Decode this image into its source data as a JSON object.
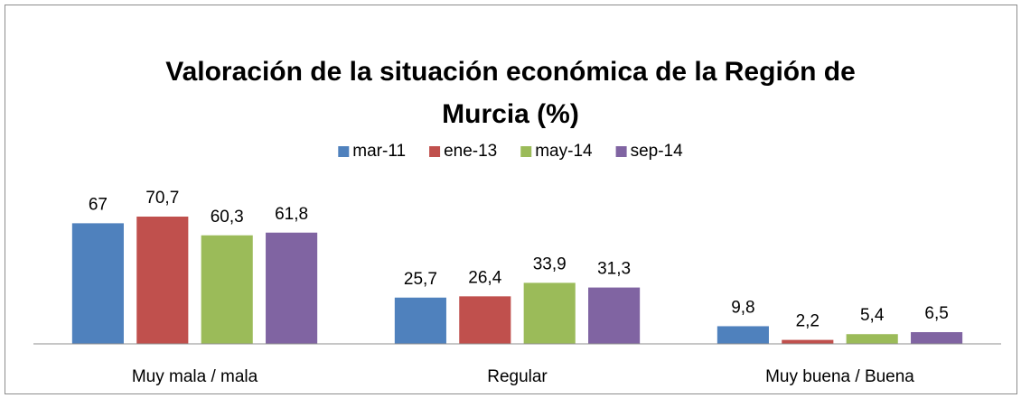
{
  "chart_data": {
    "type": "bar",
    "title": "Valoración de la situación económica de la Región de Murcia (%)",
    "categories": [
      "Muy mala / mala",
      "Regular",
      "Muy buena / Buena"
    ],
    "series": [
      {
        "name": "mar-11",
        "color": "#4f81bd",
        "values": [
          67,
          25.7,
          9.8
        ],
        "value_labels": [
          "67",
          "25,7",
          "9,8"
        ]
      },
      {
        "name": "ene-13",
        "color": "#c0504d",
        "values": [
          70.7,
          26.4,
          2.2
        ],
        "value_labels": [
          "70,7",
          "26,4",
          "2,2"
        ]
      },
      {
        "name": "may-14",
        "color": "#9bbb59",
        "values": [
          60.3,
          33.9,
          5.4
        ],
        "value_labels": [
          "60,3",
          "33,9",
          "5,4"
        ]
      },
      {
        "name": "sep-14",
        "color": "#8064a2",
        "values": [
          61.8,
          31.3,
          6.5
        ],
        "value_labels": [
          "61,8",
          "31,3",
          "6,5"
        ]
      }
    ],
    "legend": "top"
  }
}
